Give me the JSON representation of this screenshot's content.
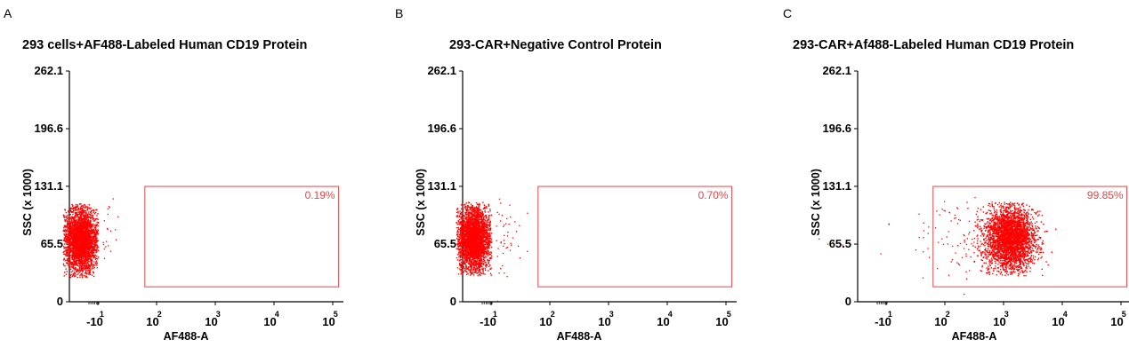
{
  "chart_data": [
    {
      "type": "scatter",
      "panel": "A",
      "title": "293 cells+AF488-Labeled Human CD19 Protein",
      "xlabel": "AF488-A",
      "ylabel": "SSC (x 1000)",
      "xscale": "log",
      "ylim": [
        0,
        262.1
      ],
      "ytick_labels": [
        "0",
        "65.5",
        "131.1",
        "196.6",
        "262.1"
      ],
      "xtick_labels": [
        {
          "base": "-10",
          "exp": "1"
        },
        {
          "base": "10",
          "exp": "2"
        },
        {
          "base": "10",
          "exp": "3"
        },
        {
          "base": "10",
          "exp": "4"
        },
        {
          "base": "10",
          "exp": "5"
        }
      ],
      "gate": {
        "label": "0.19%",
        "x_range_decades": [
          1.8,
          5.1
        ],
        "y_range": [
          17,
          131
        ]
      },
      "population_center_decade": 0.7,
      "population_center_ssc": 70,
      "marker_color": "#ff0000",
      "gate_color": "#e04848"
    },
    {
      "type": "scatter",
      "panel": "B",
      "title": "293-CAR+Negative Control Protein",
      "xlabel": "AF488-A",
      "ylabel": "SSC (x 1000)",
      "xscale": "log",
      "ylim": [
        0,
        262.1
      ],
      "ytick_labels": [
        "0",
        "65.5",
        "131.1",
        "196.6",
        "262.1"
      ],
      "xtick_labels": [
        {
          "base": "-10",
          "exp": "1"
        },
        {
          "base": "10",
          "exp": "2"
        },
        {
          "base": "10",
          "exp": "3"
        },
        {
          "base": "10",
          "exp": "4"
        },
        {
          "base": "10",
          "exp": "5"
        }
      ],
      "gate": {
        "label": "0.70%",
        "x_range_decades": [
          1.8,
          5.1
        ],
        "y_range": [
          17,
          131
        ]
      },
      "population_center_decade": 0.7,
      "population_center_ssc": 72,
      "marker_color": "#ff0000",
      "gate_color": "#e04848"
    },
    {
      "type": "scatter",
      "panel": "C",
      "title": "293-CAR+Af488-Labeled Human CD19 Protein",
      "xlabel": "AF488-A",
      "ylabel": "SSC (x 1000)",
      "xscale": "log",
      "ylim": [
        0,
        262.1
      ],
      "ytick_labels": [
        "0",
        "65.5",
        "131.1",
        "196.6",
        "262.1"
      ],
      "xtick_labels": [
        {
          "base": "-10",
          "exp": "1"
        },
        {
          "base": "10",
          "exp": "2"
        },
        {
          "base": "10",
          "exp": "3"
        },
        {
          "base": "10",
          "exp": "4"
        },
        {
          "base": "10",
          "exp": "5"
        }
      ],
      "gate": {
        "label": "99.85%",
        "x_range_decades": [
          1.8,
          5.1
        ],
        "y_range": [
          17,
          131
        ]
      },
      "population_center_decade": 3.1,
      "population_center_ssc": 72,
      "marker_color": "#ff0000",
      "gate_color": "#e04848"
    }
  ]
}
